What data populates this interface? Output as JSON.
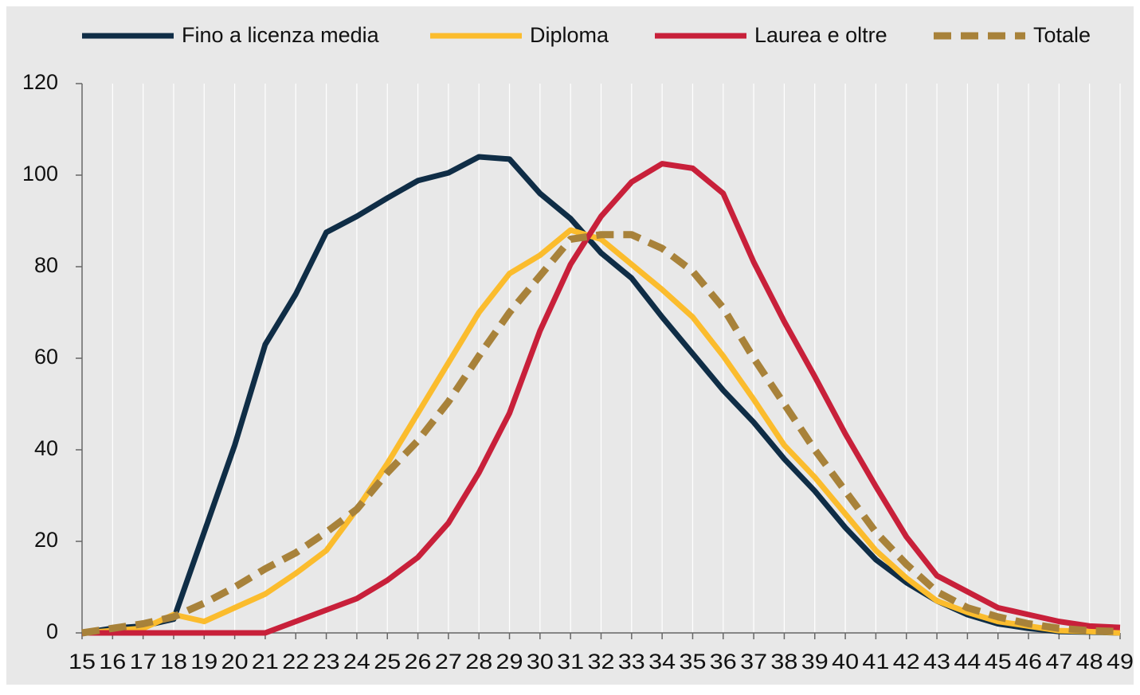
{
  "chart_data": {
    "type": "line",
    "categories": [
      "15",
      "16",
      "17",
      "18",
      "19",
      "20",
      "21",
      "22",
      "23",
      "24",
      "25",
      "26",
      "27",
      "28",
      "29",
      "30",
      "31",
      "32",
      "33",
      "34",
      "35",
      "36",
      "37",
      "38",
      "39",
      "40",
      "41",
      "42",
      "43",
      "44",
      "45",
      "46",
      "47",
      "48",
      "49"
    ],
    "series": [
      {
        "name": "Fino a licenza media",
        "color": "#0f2d46",
        "dashed": false,
        "values": [
          0,
          1,
          1.5,
          3,
          22,
          41,
          63,
          74,
          87.5,
          91,
          95,
          98.8,
          100.5,
          104,
          103.5,
          96,
          90.5,
          83,
          77.5,
          69,
          61,
          53,
          46,
          38,
          31,
          23,
          16,
          11,
          7,
          4,
          2,
          1,
          0.3,
          0.2,
          0
        ]
      },
      {
        "name": "Diploma",
        "color": "#fbbc2d",
        "dashed": false,
        "values": [
          0,
          0.5,
          1,
          4,
          2.5,
          5.5,
          8.5,
          13,
          18,
          27,
          37,
          48,
          59,
          70,
          78.5,
          82.5,
          88,
          86,
          80.5,
          75,
          69,
          60.5,
          51,
          41,
          34,
          26,
          18,
          12,
          7,
          4.5,
          2.5,
          1.5,
          0.5,
          0.3,
          0
        ]
      },
      {
        "name": "Laurea e oltre",
        "color": "#c8203a",
        "dashed": false,
        "values": [
          0,
          0,
          0,
          0,
          0,
          0,
          0,
          2.5,
          5,
          7.5,
          11.5,
          16.5,
          24,
          35,
          48,
          66,
          80.5,
          91,
          98.5,
          102.5,
          101.5,
          96,
          81,
          68,
          56,
          43.5,
          32,
          21,
          12.5,
          9,
          5.5,
          4,
          2.5,
          1.5,
          1.2
        ]
      },
      {
        "name": "Totale",
        "color": "#a8823a",
        "dashed": true,
        "values": [
          0,
          1,
          2,
          3.5,
          6.5,
          10,
          14,
          17.5,
          22,
          27,
          35,
          42,
          50.5,
          60.5,
          70,
          78,
          86,
          87,
          87,
          84,
          79,
          71,
          60,
          50,
          40,
          31,
          22,
          15,
          9,
          5.5,
          3.5,
          2,
          1,
          0.5,
          0.3
        ]
      }
    ],
    "ylim": [
      0,
      120
    ],
    "yticks": [
      0,
      20,
      40,
      60,
      80,
      100,
      120
    ],
    "grid": true,
    "legend": "top"
  }
}
